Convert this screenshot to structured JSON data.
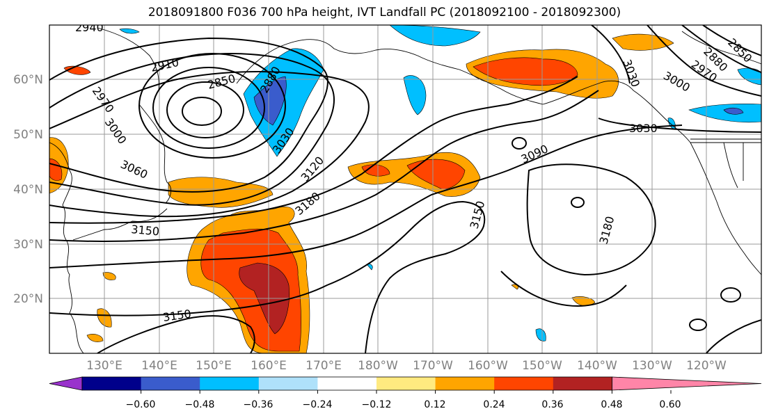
{
  "title": "2018091800 F036 700 hPa height, IVT Landfall PC (2018092100 - 2018092300)",
  "lat_labels": [
    "60°N",
    "50°N",
    "40°N",
    "30°N",
    "20°N"
  ],
  "lon_labels": [
    "130°E",
    "140°E",
    "150°E",
    "160°E",
    "170°E",
    "180°W",
    "170°W",
    "160°W",
    "150°W",
    "140°W",
    "130°W",
    "120°W"
  ],
  "contour_labels": [
    "2940",
    "2910",
    "2850",
    "2880",
    "2970",
    "3000",
    "3060",
    "3030",
    "3120",
    "3180",
    "3150",
    "3150",
    "3150",
    "3090",
    "3180",
    "3030",
    "3000",
    "2970",
    "2850",
    "2880",
    "3030"
  ],
  "colorbar": {
    "tick_labels": [
      "−0.60",
      "−0.48",
      "−0.36",
      "−0.24",
      "−0.12",
      "0.12",
      "0.24",
      "0.36",
      "0.48",
      "0.60"
    ],
    "colors": [
      "#9932cc",
      "#00008b",
      "#3a5ccc",
      "#00bfff",
      "#afe1fa",
      "#ffffff",
      "#ffea80",
      "#ffa500",
      "#ff4500",
      "#b22222",
      "#ff85a8"
    ]
  }
}
